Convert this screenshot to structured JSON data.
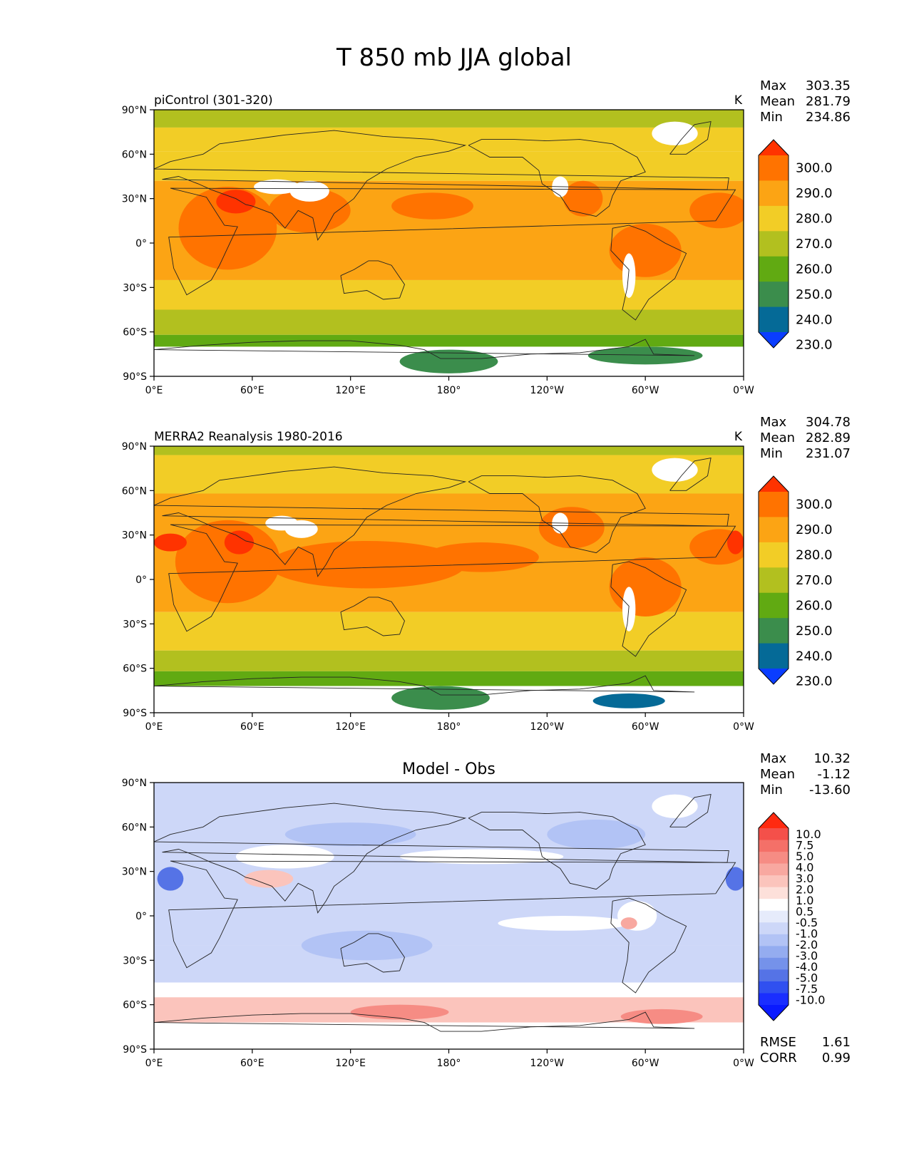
{
  "title": "T 850 mb JJA global",
  "axes": {
    "lat_ticks": [
      "90°N",
      "60°N",
      "30°N",
      "0°",
      "30°S",
      "60°S",
      "90°S"
    ],
    "lon_ticks": [
      "0°E",
      "60°E",
      "120°E",
      "180°",
      "120°W",
      "60°W",
      "0°W"
    ]
  },
  "panels": [
    {
      "id": "test",
      "label": "piControl (301-320)",
      "units": "K",
      "stats": [
        {
          "name": "Max",
          "value": "303.35"
        },
        {
          "name": "Mean",
          "value": "281.79"
        },
        {
          "name": "Min",
          "value": "234.86"
        }
      ],
      "colorbar": {
        "labels": [
          "300.0",
          "290.0",
          "280.0",
          "270.0",
          "260.0",
          "250.0",
          "240.0",
          "230.0"
        ],
        "colors": [
          "#ff3300",
          "#ff7300",
          "#fca414",
          "#f2cd26",
          "#b2c01f",
          "#61aa12",
          "#3b8d4c",
          "#056a97",
          "#0a3dff"
        ]
      }
    },
    {
      "id": "ref",
      "label": "MERRA2 Reanalysis 1980-2016",
      "units": "K",
      "stats": [
        {
          "name": "Max",
          "value": "304.78"
        },
        {
          "name": "Mean",
          "value": "282.89"
        },
        {
          "name": "Min",
          "value": "231.07"
        }
      ],
      "colorbar": {
        "labels": [
          "300.0",
          "290.0",
          "280.0",
          "270.0",
          "260.0",
          "250.0",
          "240.0",
          "230.0"
        ],
        "colors": [
          "#ff3300",
          "#ff7300",
          "#fca414",
          "#f2cd26",
          "#b2c01f",
          "#61aa12",
          "#3b8d4c",
          "#056a97",
          "#0a3dff"
        ]
      }
    },
    {
      "id": "diff",
      "label": "Model - Obs",
      "units": "",
      "stats": [
        {
          "name": "Max",
          "value": "10.32"
        },
        {
          "name": "Mean",
          "value": "-1.12"
        },
        {
          "name": "Min",
          "value": "-13.60"
        }
      ],
      "metrics": [
        {
          "name": "RMSE",
          "value": "1.61"
        },
        {
          "name": "CORR",
          "value": "0.99"
        }
      ],
      "colorbar": {
        "labels": [
          "10.0",
          "7.5",
          "5.0",
          "4.0",
          "3.0",
          "2.0",
          "1.0",
          "0.5",
          "-0.5",
          "-1.0",
          "-2.0",
          "-3.0",
          "-4.0",
          "-5.0",
          "-7.5",
          "-10.0"
        ],
        "colors": [
          "#ff2a10",
          "#f4504a",
          "#f47068",
          "#f68c84",
          "#f8a8a0",
          "#fbc4bc",
          "#fde0da",
          "#ffffff",
          "#e6ebfb",
          "#cdd7f8",
          "#b2c3f5",
          "#94acf0",
          "#7592ea",
          "#5573e6",
          "#3050f0",
          "#1a2eff",
          "#0a1aff"
        ]
      }
    }
  ],
  "map_fields": {
    "test": {
      "bands": [
        {
          "lat": [
            78,
            90
          ],
          "color": "#b2c01f"
        },
        {
          "lat": [
            62,
            78
          ],
          "color": "#f2cd26"
        },
        {
          "lat": [
            42,
            62
          ],
          "color": "#f2cd26"
        },
        {
          "lat": [
            -25,
            42
          ],
          "color": "#fca414"
        },
        {
          "lat": [
            -45,
            -25
          ],
          "color": "#f2cd26"
        },
        {
          "lat": [
            -62,
            -45
          ],
          "color": "#b2c01f"
        },
        {
          "lat": [
            -70,
            -62
          ],
          "color": "#61aa12"
        },
        {
          "lat": [
            -90,
            -70
          ],
          "color": "#ffffff"
        }
      ],
      "blobs": [
        {
          "lon": 45,
          "lat": 10,
          "rx": 30,
          "ry": 28,
          "color": "#ff7300"
        },
        {
          "lon": 95,
          "lat": 22,
          "rx": 25,
          "ry": 15,
          "color": "#ff7300"
        },
        {
          "lon": 170,
          "lat": 25,
          "rx": 25,
          "ry": 9,
          "color": "#ff7300"
        },
        {
          "lon": 300,
          "lat": -5,
          "rx": 22,
          "ry": 18,
          "color": "#ff7300"
        },
        {
          "lon": 345,
          "lat": 22,
          "rx": 18,
          "ry": 12,
          "color": "#ff7300"
        },
        {
          "lon": 262,
          "lat": 30,
          "rx": 12,
          "ry": 12,
          "color": "#ff7300"
        },
        {
          "lon": 50,
          "lat": 28,
          "rx": 12,
          "ry": 8,
          "color": "#ff3300"
        },
        {
          "lon": 75,
          "lat": 38,
          "rx": 14,
          "ry": 5,
          "color": "#ffffff"
        },
        {
          "lon": 95,
          "lat": 35,
          "rx": 12,
          "ry": 7,
          "color": "#ffffff"
        },
        {
          "lon": 248,
          "lat": 38,
          "rx": 5,
          "ry": 7,
          "color": "#ffffff"
        },
        {
          "lon": 290,
          "lat": -22,
          "rx": 4,
          "ry": 15,
          "color": "#ffffff"
        },
        {
          "lon": 318,
          "lat": 74,
          "rx": 14,
          "ry": 8,
          "color": "#ffffff"
        },
        {
          "lon": 180,
          "lat": -80,
          "rx": 30,
          "ry": 8,
          "color": "#3b8d4c"
        },
        {
          "lon": 300,
          "lat": -76,
          "rx": 35,
          "ry": 6,
          "color": "#3b8d4c"
        }
      ]
    },
    "ref": {
      "bands": [
        {
          "lat": [
            84,
            90
          ],
          "color": "#b2c01f"
        },
        {
          "lat": [
            58,
            84
          ],
          "color": "#f2cd26"
        },
        {
          "lat": [
            -22,
            58
          ],
          "color": "#fca414"
        },
        {
          "lat": [
            -48,
            -22
          ],
          "color": "#f2cd26"
        },
        {
          "lat": [
            -62,
            -48
          ],
          "color": "#b2c01f"
        },
        {
          "lat": [
            -72,
            -62
          ],
          "color": "#61aa12"
        },
        {
          "lat": [
            -90,
            -72
          ],
          "color": "#ffffff"
        }
      ],
      "blobs": [
        {
          "lon": 45,
          "lat": 12,
          "rx": 32,
          "ry": 28,
          "color": "#ff7300"
        },
        {
          "lon": 130,
          "lat": 10,
          "rx": 60,
          "ry": 16,
          "color": "#ff7300"
        },
        {
          "lon": 200,
          "lat": 15,
          "rx": 35,
          "ry": 10,
          "color": "#ff7300"
        },
        {
          "lon": 300,
          "lat": -5,
          "rx": 22,
          "ry": 20,
          "color": "#ff7300"
        },
        {
          "lon": 345,
          "lat": 22,
          "rx": 18,
          "ry": 12,
          "color": "#ff7300"
        },
        {
          "lon": 255,
          "lat": 35,
          "rx": 20,
          "ry": 14,
          "color": "#ff7300"
        },
        {
          "lon": 10,
          "lat": 25,
          "rx": 10,
          "ry": 6,
          "color": "#ff3300"
        },
        {
          "lon": 52,
          "lat": 25,
          "rx": 9,
          "ry": 8,
          "color": "#ff3300"
        },
        {
          "lon": 355,
          "lat": 25,
          "rx": 5,
          "ry": 8,
          "color": "#ff3300"
        },
        {
          "lon": 78,
          "lat": 38,
          "rx": 10,
          "ry": 5,
          "color": "#ffffff"
        },
        {
          "lon": 90,
          "lat": 34,
          "rx": 10,
          "ry": 6,
          "color": "#ffffff"
        },
        {
          "lon": 248,
          "lat": 38,
          "rx": 5,
          "ry": 7,
          "color": "#ffffff"
        },
        {
          "lon": 290,
          "lat": -20,
          "rx": 4,
          "ry": 15,
          "color": "#ffffff"
        },
        {
          "lon": 318,
          "lat": 74,
          "rx": 14,
          "ry": 8,
          "color": "#ffffff"
        },
        {
          "lon": 175,
          "lat": -80,
          "rx": 30,
          "ry": 8,
          "color": "#3b8d4c"
        },
        {
          "lon": 290,
          "lat": -82,
          "rx": 22,
          "ry": 5,
          "color": "#056a97"
        }
      ]
    },
    "diff": {
      "bands": [
        {
          "lat": [
            -20,
            90
          ],
          "color": "#cdd7f8"
        },
        {
          "lat": [
            -45,
            -20
          ],
          "color": "#cdd7f8"
        },
        {
          "lat": [
            -55,
            -45
          ],
          "color": "#ffffff"
        },
        {
          "lat": [
            -72,
            -55
          ],
          "color": "#fbc4bc"
        },
        {
          "lat": [
            -90,
            -72
          ],
          "color": "#ffffff"
        }
      ],
      "blobs": [
        {
          "lon": 120,
          "lat": 55,
          "rx": 40,
          "ry": 8,
          "color": "#b2c3f5"
        },
        {
          "lon": 270,
          "lat": 55,
          "rx": 30,
          "ry": 10,
          "color": "#b2c3f5"
        },
        {
          "lon": 130,
          "lat": -20,
          "rx": 40,
          "ry": 10,
          "color": "#b2c3f5"
        },
        {
          "lon": 10,
          "lat": 25,
          "rx": 8,
          "ry": 8,
          "color": "#5573e6"
        },
        {
          "lon": 355,
          "lat": 25,
          "rx": 6,
          "ry": 8,
          "color": "#5573e6"
        },
        {
          "lon": 200,
          "lat": 40,
          "rx": 50,
          "ry": 5,
          "color": "#ffffff"
        },
        {
          "lon": 80,
          "lat": 40,
          "rx": 30,
          "ry": 8,
          "color": "#ffffff"
        },
        {
          "lon": 295,
          "lat": 0,
          "rx": 12,
          "ry": 10,
          "color": "#ffffff"
        },
        {
          "lon": 250,
          "lat": -5,
          "rx": 40,
          "ry": 5,
          "color": "#ffffff"
        },
        {
          "lon": 70,
          "lat": 25,
          "rx": 15,
          "ry": 6,
          "color": "#fbc4bc"
        },
        {
          "lon": 290,
          "lat": -5,
          "rx": 5,
          "ry": 4,
          "color": "#f8a8a0"
        },
        {
          "lon": 150,
          "lat": -65,
          "rx": 30,
          "ry": 5,
          "color": "#f68c84"
        },
        {
          "lon": 310,
          "lat": -68,
          "rx": 25,
          "ry": 5,
          "color": "#f68c84"
        },
        {
          "lon": 318,
          "lat": 74,
          "rx": 14,
          "ry": 8,
          "color": "#ffffff"
        }
      ]
    }
  }
}
